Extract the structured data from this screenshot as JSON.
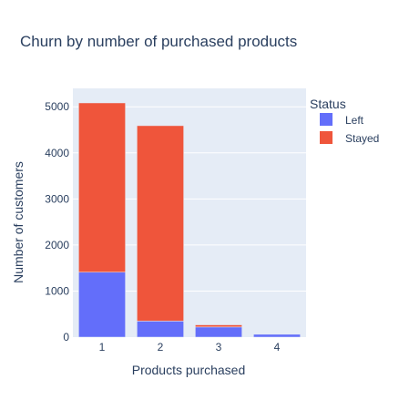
{
  "chart_data": {
    "type": "bar",
    "barmode": "stack",
    "title": "Churn by number of purchased products",
    "xlabel": "Products purchased",
    "ylabel": "Number of customers",
    "categories": [
      "1",
      "2",
      "3",
      "4"
    ],
    "ylim": [
      0,
      5400
    ],
    "yticks": [
      0,
      1000,
      2000,
      3000,
      4000,
      5000
    ],
    "yticklabels": [
      "0",
      "1000",
      "2000",
      "3000",
      "4000",
      "5000"
    ],
    "grid": true,
    "legend": {
      "title": "Status",
      "placement": "top-right"
    },
    "series": [
      {
        "name": "Left",
        "values": [
          1409,
          348,
          220,
          60
        ],
        "color": "#636efa"
      },
      {
        "name": "Stayed",
        "values": [
          3675,
          4242,
          46,
          0
        ],
        "color": "#ef553b"
      }
    ]
  },
  "colors": {
    "plot_background": "#e5ecf6",
    "grid": "#ffffff",
    "text": "#2a3f5f"
  }
}
